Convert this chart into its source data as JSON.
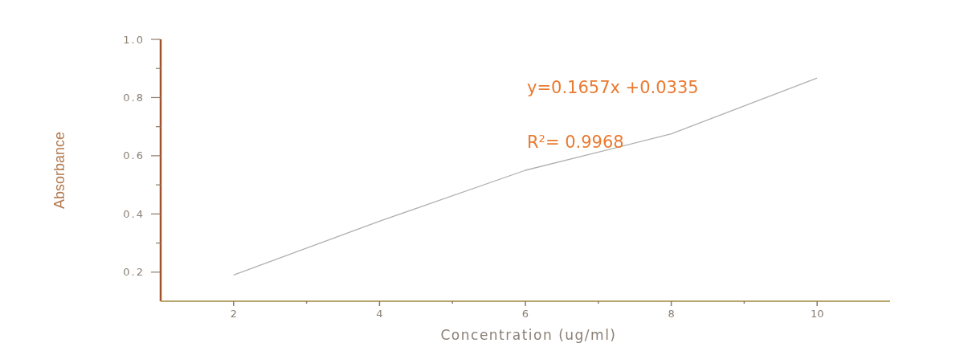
{
  "chart_data": {
    "type": "line",
    "xlabel": "Concentration (ug/ml)",
    "ylabel": "Absorbance",
    "x": [
      2,
      4,
      6,
      8,
      10
    ],
    "series": [
      {
        "color": "#b0b0b0",
        "values": [
          0.19,
          0.375,
          0.55,
          0.675,
          0.867
        ]
      }
    ],
    "xlim": [
      1,
      11
    ],
    "xticks": [
      2,
      {
        "value": 3,
        "label": null
      },
      4,
      {
        "value": 5,
        "label": null
      },
      6,
      {
        "value": 7,
        "label": null
      },
      8,
      {
        "value": 9,
        "label": null
      },
      10
    ],
    "ylim": [
      0.1,
      1.0
    ],
    "yticks": [
      0.2,
      {
        "value": 0.3,
        "label": null
      },
      0.4,
      {
        "value": 0.5,
        "label": null
      },
      0.6,
      {
        "value": 0.7,
        "label": null
      },
      0.8,
      {
        "value": 0.9,
        "label": null
      },
      {
        "value": 1.0,
        "label": "1.0"
      }
    ],
    "annotations": [
      "y=0.1657x +0.0335",
      "R$^{2}$= 0.9968"
    ],
    "grid": false,
    "marker": "none",
    "line_style": "solid"
  }
}
